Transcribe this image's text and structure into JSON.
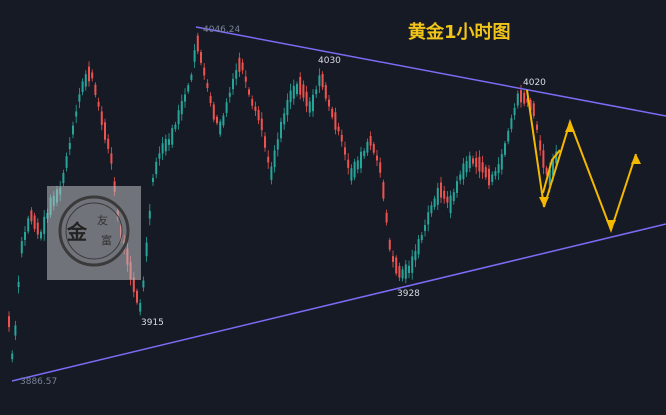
{
  "chart_data": {
    "type": "candlestick",
    "title": "黄金1小时图",
    "annotations": [
      {
        "label": "4046.24",
        "value": 4046.24
      },
      {
        "label": "4030",
        "value": 4030
      },
      {
        "label": "4020",
        "value": 4020
      },
      {
        "label": "3915",
        "value": 3915
      },
      {
        "label": "3928",
        "value": 3928
      },
      {
        "label": "3886.57",
        "value": 3886.57
      }
    ],
    "trendlines": [
      {
        "name": "upper-trendline",
        "from_value": 4046.24,
        "to_value": 3990
      },
      {
        "name": "lower-trendline",
        "from_value": 3886.57,
        "to_value": 3962
      }
    ],
    "projection_path_1": [
      4020,
      3970,
      4000,
      3985
    ],
    "projection_path_2": [
      4000,
      3955,
      3995
    ],
    "colors": {
      "background": "#161a25",
      "up_candle": "#26a69a",
      "down_candle": "#ef5350",
      "trendline": "#7b6cf6",
      "projection": "#f5b800",
      "title": "#f0c419"
    },
    "watermark_text": [
      "金",
      "友",
      "富"
    ]
  }
}
